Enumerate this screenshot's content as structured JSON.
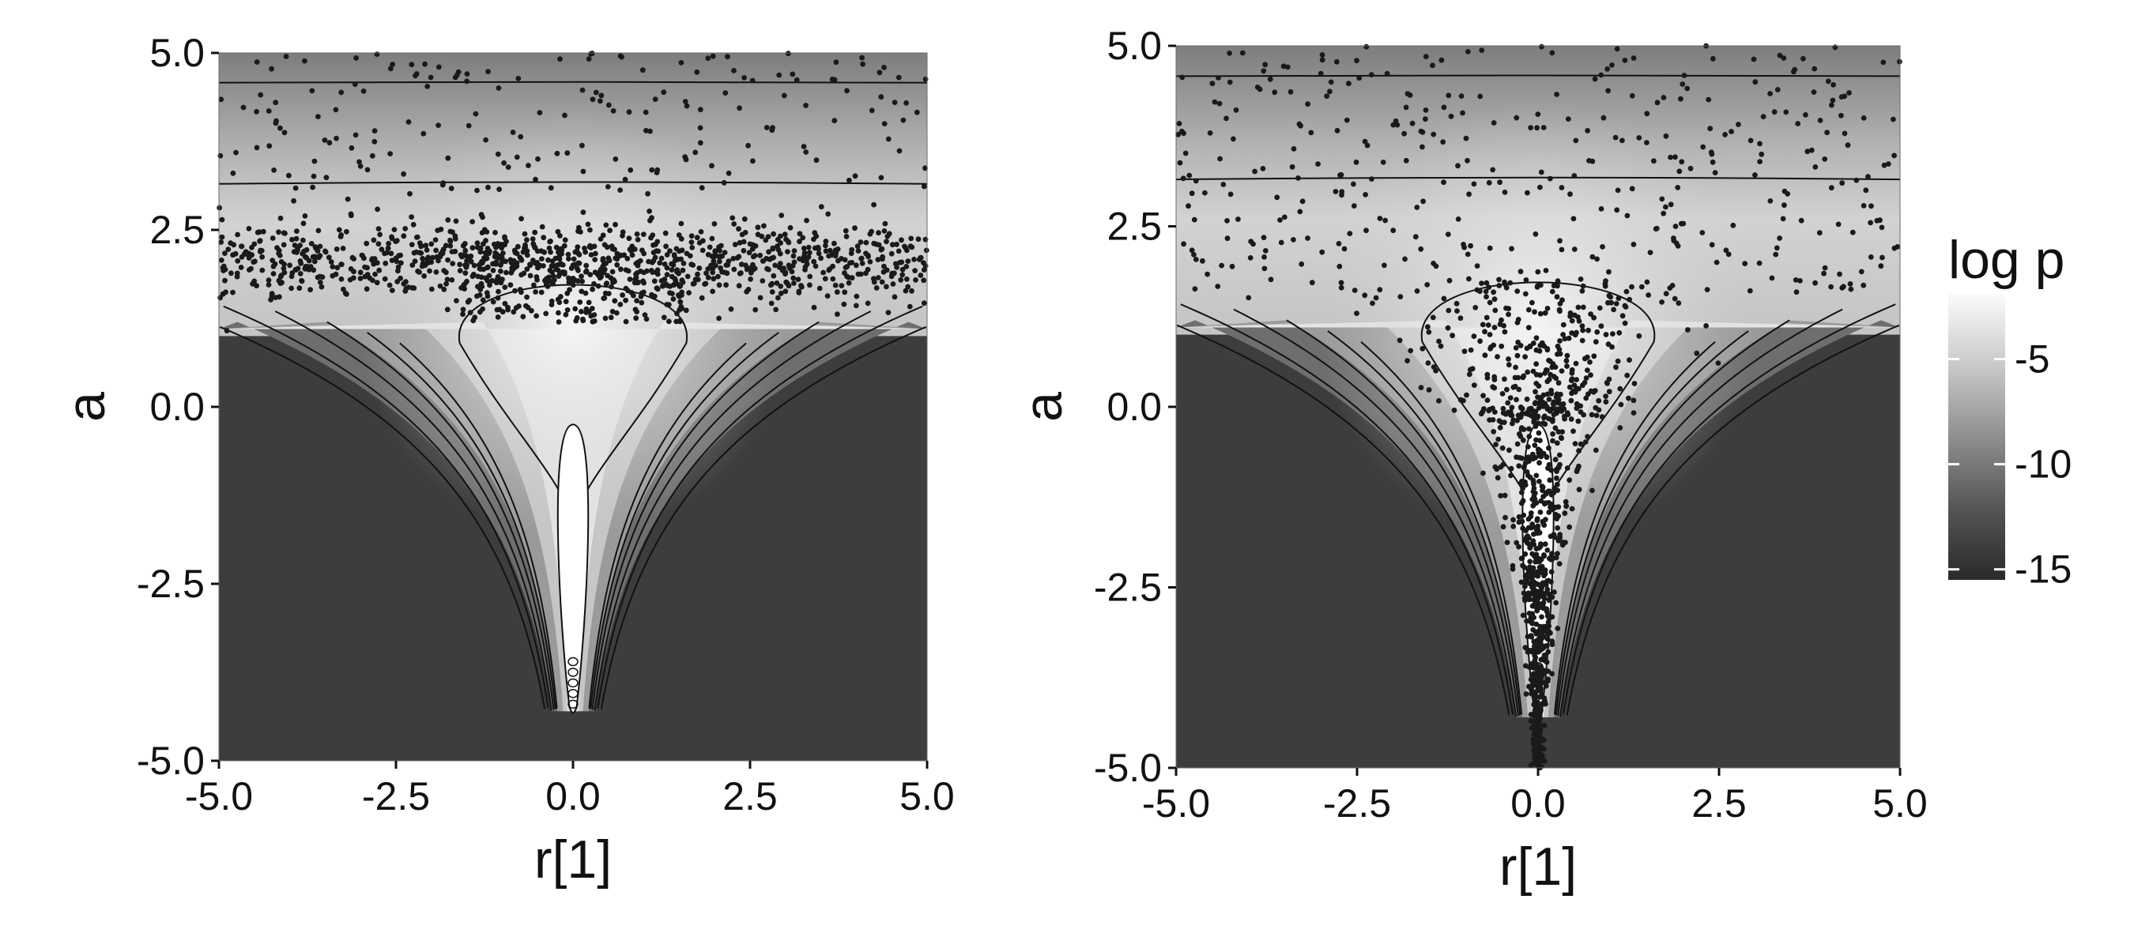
{
  "chart_data": [
    {
      "type": "scatter",
      "title": "",
      "xlabel": "r[1]",
      "ylabel": "a",
      "xlim": [
        -5,
        5
      ],
      "ylim": [
        -5,
        5
      ],
      "xticks": [
        -5,
        -2.5,
        0,
        2.5,
        5
      ],
      "xtick_labels": [
        "-5.0",
        "-2.5",
        "0.0",
        "2.5",
        "5.0"
      ],
      "yticks": [
        -5,
        -2.5,
        0,
        2.5,
        5
      ],
      "ytick_labels": [
        "-5.0",
        "-2.5",
        "0.0",
        "2.5",
        "5.0"
      ],
      "background": "log-density heatmap with contour lines (funnel shape)",
      "contour_levels": [
        -1.9,
        -2.2,
        -3.5,
        -4.5,
        -6,
        -7.5,
        -9,
        -10.5,
        -12
      ],
      "sample_distribution": "dense horizontal band at a ≈ 2.0 (spread 1.0–3.5), sparse samples up to a ≈ 5; no samples in funnel neck",
      "points": [
        [
          -4.2,
          4.3
        ],
        [
          -3.6,
          4.1
        ],
        [
          -2.8,
          3.9
        ],
        [
          -1.5,
          4.6
        ],
        [
          0.4,
          4.4
        ],
        [
          1.8,
          4.2
        ],
        [
          3.1,
          4.7
        ],
        [
          4.4,
          4.0
        ],
        [
          -4.8,
          3.3
        ],
        [
          -3.0,
          3.4
        ],
        [
          -1.2,
          3.1
        ],
        [
          0.6,
          3.5
        ],
        [
          2.2,
          3.3
        ],
        [
          3.9,
          3.2
        ],
        [
          -4.5,
          2.3
        ],
        [
          -4.0,
          2.0
        ],
        [
          -3.5,
          2.2
        ],
        [
          -3.0,
          1.9
        ],
        [
          -2.5,
          2.1
        ],
        [
          -2.0,
          2.3
        ],
        [
          -1.5,
          2.0
        ],
        [
          -1.0,
          1.8
        ],
        [
          -0.5,
          2.2
        ],
        [
          0.0,
          2.0
        ],
        [
          0.5,
          2.1
        ],
        [
          1.0,
          1.9
        ],
        [
          1.5,
          2.2
        ],
        [
          2.0,
          2.0
        ],
        [
          2.5,
          2.3
        ],
        [
          3.0,
          1.9
        ],
        [
          3.5,
          2.1
        ],
        [
          4.0,
          2.0
        ],
        [
          4.6,
          2.2
        ],
        [
          -0.8,
          1.4
        ],
        [
          0.3,
          1.3
        ],
        [
          0.9,
          1.5
        ],
        [
          -0.2,
          1.2
        ],
        [
          1.4,
          1.6
        ]
      ]
    },
    {
      "type": "scatter",
      "title": "",
      "xlabel": "r[1]",
      "ylabel": "a",
      "xlim": [
        -5,
        5
      ],
      "ylim": [
        -5,
        5
      ],
      "xticks": [
        -5,
        -2.5,
        0,
        2.5,
        5
      ],
      "xtick_labels": [
        "-5.0",
        "-2.5",
        "0.0",
        "2.5",
        "5.0"
      ],
      "yticks": [
        -5,
        -2.5,
        0,
        2.5,
        5
      ],
      "ytick_labels": [
        "-5.0",
        "-2.5",
        "0.0",
        "2.5",
        "5.0"
      ],
      "background": "log-density heatmap with contour lines (funnel shape)",
      "contour_levels": [
        -1.9,
        -2.2,
        -3.5,
        -4.5,
        -6,
        -7.5,
        -9,
        -10.5,
        -12
      ],
      "sample_distribution": "samples follow the funnel: spread widely for a > 1, concentrated near r[1] = 0 down to a ≈ -5",
      "points": [
        [
          -4.4,
          4.2
        ],
        [
          -2.3,
          4.6
        ],
        [
          -0.8,
          4.3
        ],
        [
          1.2,
          4.8
        ],
        [
          3.0,
          4.5
        ],
        [
          4.5,
          4.0
        ],
        [
          -3.8,
          3.3
        ],
        [
          -1.6,
          3.6
        ],
        [
          0.5,
          3.2
        ],
        [
          2.4,
          3.5
        ],
        [
          4.2,
          3.1
        ],
        [
          -2.6,
          2.4
        ],
        [
          -1.1,
          2.6
        ],
        [
          0.3,
          2.3
        ],
        [
          1.9,
          2.5
        ],
        [
          3.3,
          2.2
        ],
        [
          -1.3,
          1.5
        ],
        [
          -0.6,
          1.1
        ],
        [
          0.1,
          1.3
        ],
        [
          0.8,
          0.9
        ],
        [
          1.2,
          1.4
        ],
        [
          -0.7,
          0.4
        ],
        [
          -0.3,
          0.1
        ],
        [
          0.2,
          -0.2
        ],
        [
          0.5,
          0.3
        ],
        [
          -0.4,
          -0.6
        ],
        [
          0.3,
          -0.8
        ],
        [
          -0.2,
          -1.5
        ],
        [
          0.1,
          -1.9
        ],
        [
          0.05,
          -2.5
        ],
        [
          -0.08,
          -3.0
        ],
        [
          0.04,
          -3.6
        ],
        [
          -0.03,
          -4.1
        ],
        [
          0.02,
          -4.7
        ]
      ]
    }
  ],
  "legend": {
    "title": "log p",
    "colors": [
      "#fbfbfb",
      "#c9c9c9",
      "#8f8f8f",
      "#555555",
      "#2a2a2a"
    ],
    "range": [
      -15.5,
      -1.9
    ],
    "ticks": [
      -5,
      -10,
      -15
    ],
    "tick_labels": [
      "-5",
      "-10",
      "-15"
    ]
  }
}
